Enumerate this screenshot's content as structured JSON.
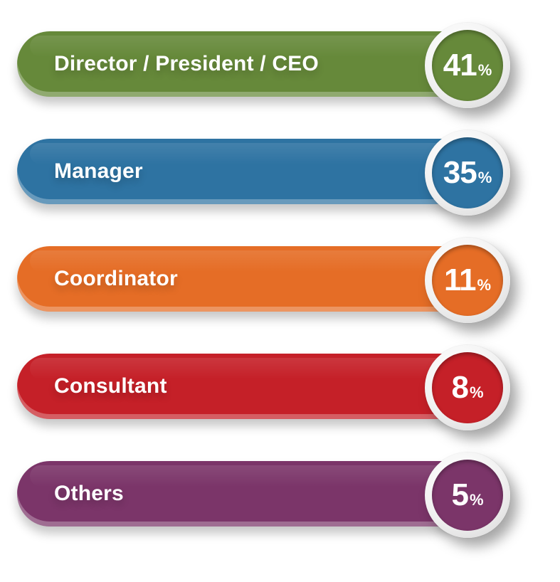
{
  "chart_data": {
    "type": "bar",
    "categories": [
      "Director / President / CEO",
      "Manager",
      "Coordinator",
      "Consultant",
      "Others"
    ],
    "values": [
      41,
      35,
      11,
      8,
      5
    ],
    "unit": "%",
    "colors": [
      "#66893a",
      "#2e73a2",
      "#e56d26",
      "#c52028",
      "#7b3569"
    ]
  }
}
